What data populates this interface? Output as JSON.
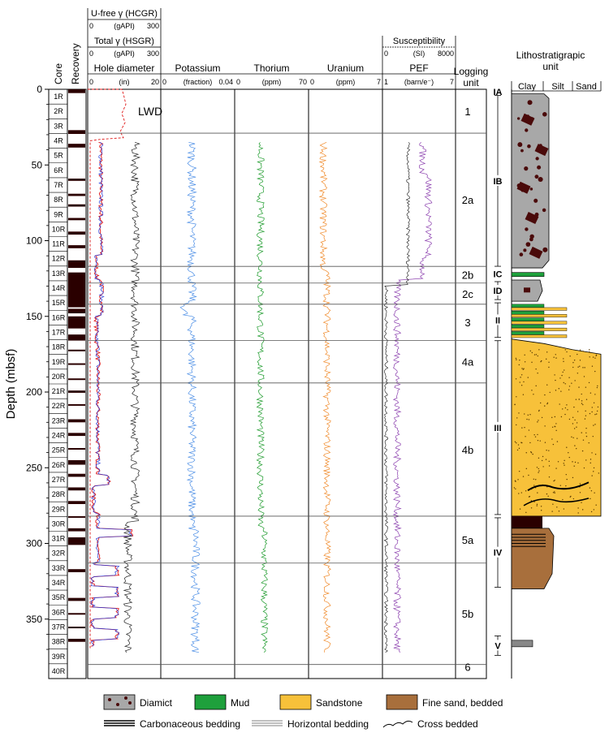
{
  "chart_data": {
    "type": "line",
    "title": "",
    "ylabel": "Depth (mbsf)",
    "ylim": [
      0,
      380
    ],
    "y_ticks": [
      0,
      50,
      100,
      150,
      200,
      250,
      300,
      350
    ],
    "header": {
      "core_label": "Core",
      "recovery_label": "Recovery",
      "u_free": {
        "label": "U-free γ (HCGR)",
        "unit": "(gAPI)",
        "min": "0",
        "max": "300"
      },
      "total_gamma": {
        "label": "Total γ (HSGR)",
        "unit": "(gAPI)",
        "min": "0",
        "max": "300"
      },
      "susceptibility": {
        "label": "Susceptibility",
        "unit": "(SI)",
        "min": "0",
        "max": "8000"
      },
      "logging_unit_label": "Logging unit",
      "litho_title": "Lithostratigrapic unit",
      "grain_labels": [
        "Clay",
        "Silt",
        "Sand"
      ]
    },
    "tracks": [
      {
        "name": "Hole diameter",
        "unit": "(in)",
        "min": "0",
        "max": "20"
      },
      {
        "name": "Potassium",
        "unit": "(fraction)",
        "min": "0",
        "max": "0.04"
      },
      {
        "name": "Thorium",
        "unit": "(ppm)",
        "min": "0",
        "max": "70"
      },
      {
        "name": "Uranium",
        "unit": "(ppm)",
        "min": "0",
        "max": "7"
      },
      {
        "name": "PEF",
        "unit": "(barn/e⁻)",
        "min": "1",
        "max": "7"
      }
    ],
    "annotation": "LWD",
    "cores": [
      "1R",
      "2R",
      "3R",
      "4R",
      "5R",
      "6R",
      "7R",
      "8R",
      "9R",
      "10R",
      "11R",
      "12R",
      "13R",
      "14R",
      "15R",
      "16R",
      "17R",
      "18R",
      "19R",
      "20R",
      "21R",
      "22R",
      "23R",
      "24R",
      "25R",
      "26R",
      "27R",
      "28R",
      "29R",
      "30R",
      "31R",
      "32R",
      "33R",
      "34R",
      "35R",
      "36R",
      "37R",
      "38R",
      "39R",
      "40R"
    ],
    "recovery": [
      [
        0,
        2.5
      ],
      [
        27,
        29.5
      ],
      [
        36,
        38.5
      ],
      [
        59,
        60.5
      ],
      [
        69,
        70.5
      ],
      [
        76,
        77.5
      ],
      [
        85,
        86.5
      ],
      [
        94,
        96
      ],
      [
        103,
        105
      ],
      [
        113,
        118
      ],
      [
        121,
        144
      ],
      [
        145,
        148
      ],
      [
        150,
        158
      ],
      [
        162,
        166
      ],
      [
        172,
        173
      ],
      [
        181,
        182
      ],
      [
        191,
        192
      ],
      [
        199,
        200.5
      ],
      [
        208,
        209
      ],
      [
        218,
        220
      ],
      [
        227,
        229
      ],
      [
        237,
        238
      ],
      [
        245,
        248
      ],
      [
        254,
        256
      ],
      [
        263,
        265
      ],
      [
        272,
        274
      ],
      [
        282,
        283
      ],
      [
        290,
        292
      ],
      [
        296,
        301
      ],
      [
        317,
        319
      ],
      [
        336,
        338
      ],
      [
        346,
        347
      ],
      [
        355,
        356
      ],
      [
        363,
        365
      ]
    ],
    "logging_units": [
      {
        "label": "1",
        "top": 0,
        "bottom": 29
      },
      {
        "label": "2a",
        "top": 29,
        "bottom": 117
      },
      {
        "label": "2b",
        "top": 117,
        "bottom": 128
      },
      {
        "label": "2c",
        "top": 128,
        "bottom": 142
      },
      {
        "label": "3",
        "top": 142,
        "bottom": 166
      },
      {
        "label": "4a",
        "top": 166,
        "bottom": 194
      },
      {
        "label": "4b",
        "top": 194,
        "bottom": 282
      },
      {
        "label": "5a",
        "top": 282,
        "bottom": 313
      },
      {
        "label": "5b",
        "top": 313,
        "bottom": 380
      },
      {
        "label": "6",
        "top": 380,
        "bottom": 385
      }
    ],
    "litho_units": [
      {
        "label": "IA",
        "top": 0,
        "bottom": 3
      },
      {
        "label": "IB",
        "top": 3,
        "bottom": 118
      },
      {
        "label": "IC",
        "top": 118,
        "bottom": 126
      },
      {
        "label": "ID",
        "top": 126,
        "bottom": 140
      },
      {
        "label": "II",
        "top": 140,
        "bottom": 165
      },
      {
        "label": "III",
        "top": 165,
        "bottom": 282
      },
      {
        "label": "IV",
        "top": 282,
        "bottom": 330
      },
      {
        "label": "V",
        "top": 360,
        "bottom": 375
      }
    ],
    "legend": [
      "Diamict",
      "Mud",
      "Sandstone",
      "Fine sand, bedded",
      "Carbonaceous bedding",
      "Horizontal bedding",
      "Cross bedded"
    ],
    "colors": {
      "hole_caliper_1": "#e01818",
      "hole_caliper_2": "#2a3cd8",
      "lwd": "#e01818",
      "gamma": "#222222",
      "potassium": "#4d8fe6",
      "thorium": "#1b9a2a",
      "uranium": "#f08a2a",
      "pef": "#8b3fae",
      "susceptibility": "#111111",
      "diamict": "#a8a8a8",
      "clast": "#4a0a0a",
      "mud": "#1ea03c",
      "sandstone": "#f7c13a",
      "fine_sand": "#a86f3c",
      "core": "#2a0000"
    }
  }
}
